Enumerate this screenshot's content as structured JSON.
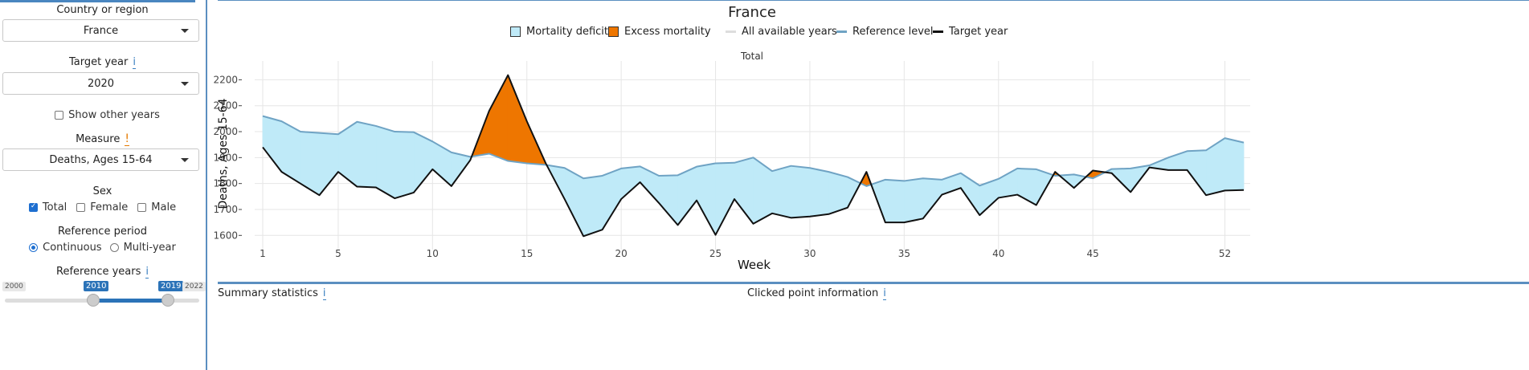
{
  "sidebar": {
    "country": {
      "label": "Country or region",
      "value": "France"
    },
    "target_year": {
      "label": "Target year",
      "info": "i",
      "value": "2020"
    },
    "show_other_years": {
      "label": "Show other years",
      "checked": false
    },
    "measure": {
      "label": "Measure",
      "warn": "!",
      "value": "Deaths, Ages 15-64"
    },
    "sex": {
      "label": "Sex",
      "options": [
        {
          "label": "Total",
          "checked": true
        },
        {
          "label": "Female",
          "checked": false
        },
        {
          "label": "Male",
          "checked": false
        }
      ]
    },
    "reference_period": {
      "label": "Reference period",
      "options": [
        {
          "label": "Continuous",
          "selected": true
        },
        {
          "label": "Multi-year",
          "selected": false
        }
      ]
    },
    "reference_years": {
      "label": "Reference years",
      "info": "i",
      "min": "2000",
      "max": "2022",
      "from": "2010",
      "to": "2019"
    }
  },
  "chart": {
    "title": "France",
    "facet": "Total",
    "legend": {
      "deficit": "Mortality deficit",
      "excess": "Excess mortality",
      "all_years": "All available years",
      "reference": "Reference level",
      "target": "Target year"
    },
    "colors": {
      "deficit": "#bfeaf8",
      "excess": "#ee7600",
      "reference": "#6fa3c4",
      "target": "#111111",
      "all_years": "#dddddd"
    }
  },
  "chart_data": {
    "type": "line",
    "xlabel": "Week",
    "ylabel": "Deaths, Ages 15-64",
    "x_ticks": [
      1,
      5,
      10,
      15,
      20,
      25,
      30,
      35,
      40,
      45,
      52
    ],
    "y_ticks": [
      1600,
      1700,
      1800,
      1900,
      2000,
      2100,
      2200
    ],
    "xlim": [
      1,
      53
    ],
    "ylim": [
      1570,
      2260
    ],
    "x": [
      1,
      2,
      3,
      4,
      5,
      6,
      7,
      8,
      9,
      10,
      11,
      12,
      13,
      14,
      15,
      16,
      17,
      18,
      19,
      20,
      21,
      22,
      23,
      24,
      25,
      26,
      27,
      28,
      29,
      30,
      31,
      32,
      33,
      34,
      35,
      36,
      37,
      38,
      39,
      40,
      41,
      42,
      43,
      44,
      45,
      46,
      47,
      48,
      49,
      50,
      51,
      52,
      53
    ],
    "series": [
      {
        "name": "Reference level",
        "values": [
          2060,
          2040,
          2000,
          1995,
          1990,
          2038,
          2022,
          2000,
          1998,
          1962,
          1920,
          1903,
          1915,
          1887,
          1878,
          1872,
          1860,
          1820,
          1830,
          1858,
          1866,
          1830,
          1832,
          1865,
          1878,
          1880,
          1900,
          1848,
          1868,
          1860,
          1845,
          1825,
          1790,
          1815,
          1810,
          1820,
          1815,
          1840,
          1792,
          1818,
          1858,
          1855,
          1830,
          1835,
          1820,
          1856,
          1858,
          1870,
          1900,
          1925,
          1928,
          1975,
          1958
        ]
      },
      {
        "name": "Target year",
        "values": [
          1940,
          1845,
          1800,
          1755,
          1845,
          1788,
          1785,
          1743,
          1765,
          1855,
          1790,
          1890,
          2080,
          2218,
          2040,
          1878,
          1740,
          1597,
          1622,
          1740,
          1805,
          1725,
          1640,
          1735,
          1602,
          1740,
          1645,
          1685,
          1668,
          1673,
          1682,
          1707,
          1845,
          1650,
          1650,
          1665,
          1757,
          1783,
          1678,
          1745,
          1757,
          1717,
          1845,
          1783,
          1850,
          1840,
          1767,
          1862,
          1852,
          1852,
          1755,
          1773,
          1775
        ]
      }
    ]
  },
  "bottom": {
    "summary": {
      "label": "Summary statistics",
      "info": "i"
    },
    "clicked": {
      "label": "Clicked point information",
      "info": "i"
    }
  }
}
